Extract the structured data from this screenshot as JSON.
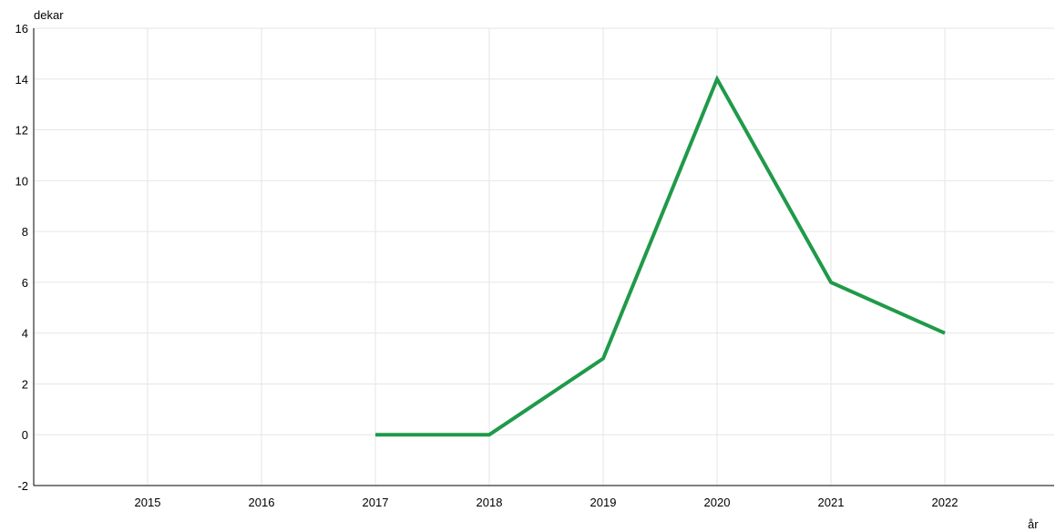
{
  "chart_data": {
    "type": "line",
    "title": "",
    "xlabel": "år",
    "ylabel": "dekar",
    "x": [
      "2015",
      "2016",
      "2017",
      "2018",
      "2019",
      "2020",
      "2021",
      "2022"
    ],
    "series": [
      {
        "values": [
          null,
          null,
          0,
          0,
          3,
          14,
          6,
          4
        ],
        "color": "#1f9a49"
      }
    ],
    "ylim": [
      -2,
      16
    ],
    "yticks": [
      "16",
      "14",
      "12",
      "10",
      "8",
      "6",
      "4",
      "2",
      "0",
      "-2"
    ],
    "grid": true,
    "legend": "none"
  }
}
